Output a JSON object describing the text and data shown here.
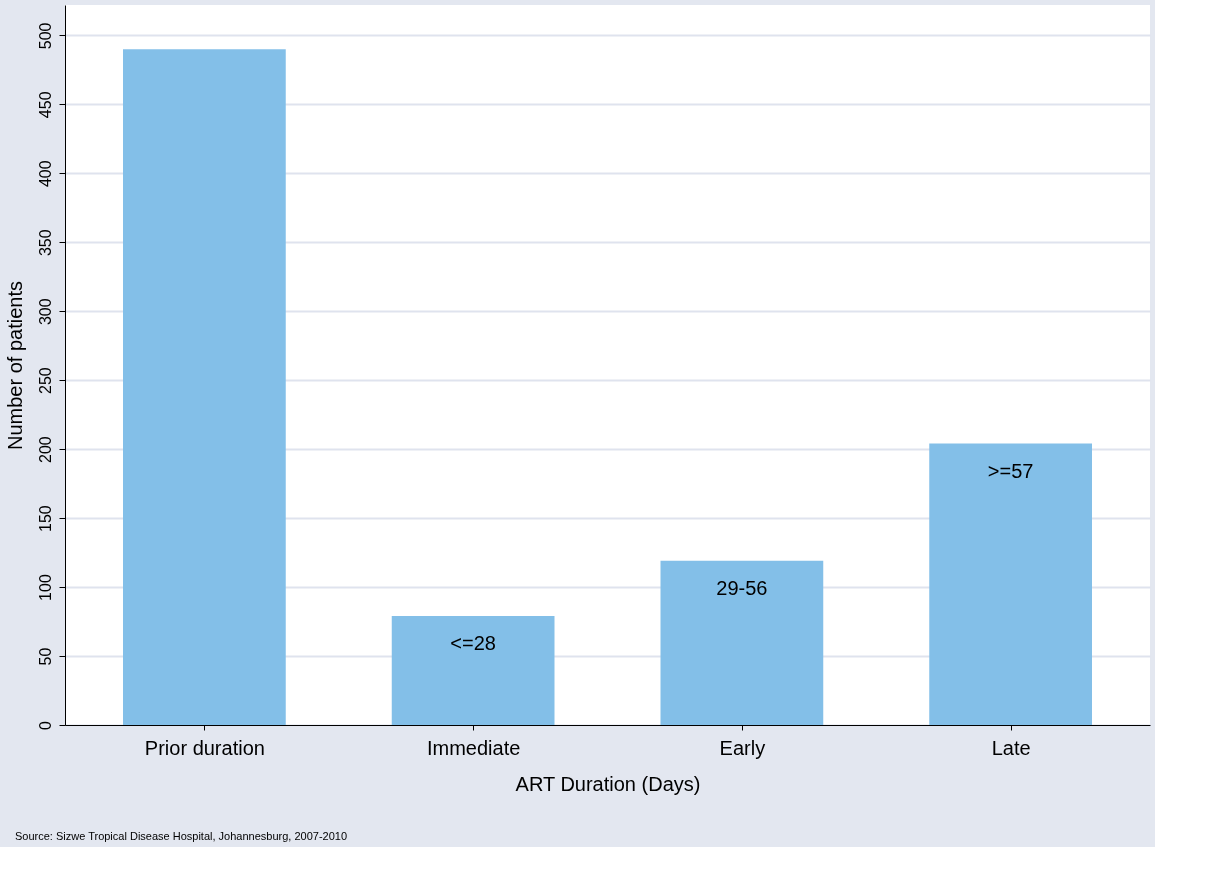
{
  "chart_data": {
    "type": "bar",
    "xlabel": "ART Duration (Days)",
    "ylabel": "Number of patients",
    "categories": [
      "Prior duration",
      "Immediate",
      "Early",
      "Late"
    ],
    "values": [
      490,
      79,
      119,
      204
    ],
    "color": "#83bfe8",
    "ylim": [
      0,
      522
    ],
    "yticks": [
      0,
      50,
      100,
      150,
      200,
      250,
      300,
      350,
      400,
      450,
      500
    ],
    "grid": "y",
    "value_labels": [
      null,
      "<=28",
      "29-56",
      ">=57"
    ],
    "annotations": [
      "Source: Sizwe Tropical Disease Hospital, Johannesburg, 2007-2010"
    ]
  }
}
